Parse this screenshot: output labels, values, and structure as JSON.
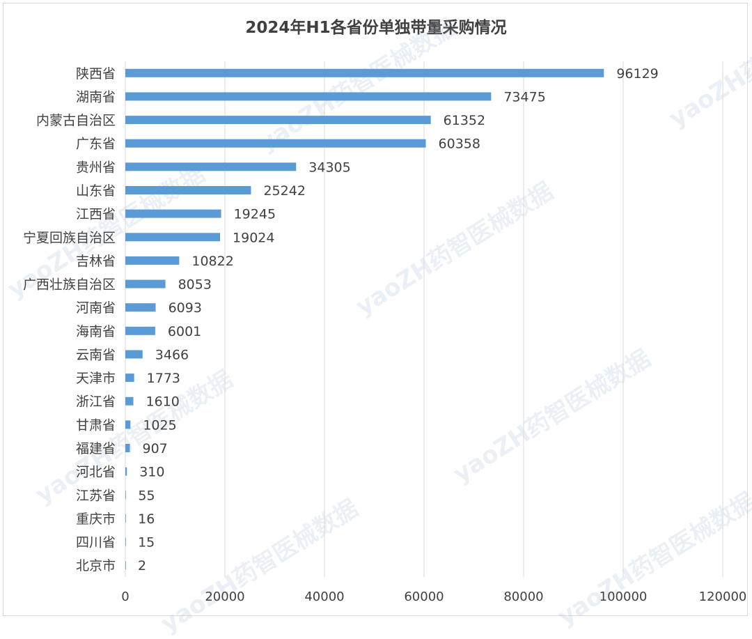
{
  "colors": {
    "bar": "#5b9bd5",
    "grid": "#d9d9d9",
    "text": "#404040"
  },
  "watermark_text": "yaoZH药智医械数据",
  "chart_data": {
    "type": "bar",
    "orientation": "horizontal",
    "title": "2024年H1各省份单独带量采购情况",
    "categories": [
      "陕西省",
      "湖南省",
      "内蒙古自治区",
      "广东省",
      "贵州省",
      "山东省",
      "江西省",
      "宁夏回族自治区",
      "吉林省",
      "广西壮族自治区",
      "河南省",
      "海南省",
      "云南省",
      "天津市",
      "浙江省",
      "甘肃省",
      "福建省",
      "河北省",
      "江苏省",
      "重庆市",
      "四川省",
      "北京市"
    ],
    "values": [
      96129,
      73475,
      61352,
      60358,
      34305,
      25242,
      19245,
      19024,
      10822,
      8053,
      6093,
      6001,
      3466,
      1773,
      1610,
      1025,
      907,
      310,
      55,
      16,
      15,
      2
    ],
    "xlim": [
      0,
      120000
    ],
    "xticks": [
      0,
      20000,
      40000,
      60000,
      80000,
      100000,
      120000
    ],
    "grid": true,
    "data_labels": true
  }
}
